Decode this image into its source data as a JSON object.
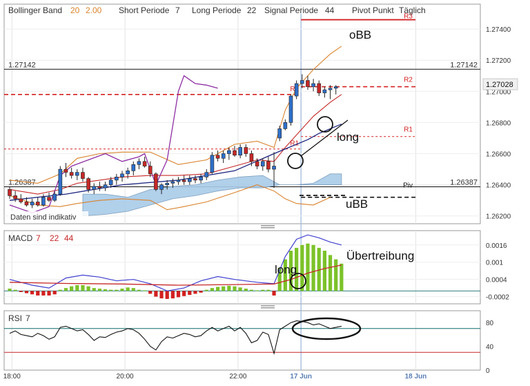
{
  "header": {
    "bb_label": "Bollinger Band",
    "bb_period": "20",
    "bb_dev": "2.00",
    "short_label": "Short Periode",
    "short_value": "7",
    "long_label": "Long Periode",
    "long_value": "22",
    "signal_label": "Signal Periode",
    "signal_value": "44",
    "pivot_label": "Pivot Punkt",
    "pivot_mode": "Täglich"
  },
  "notice": "Daten sind indikativ",
  "colors": {
    "up_candle": "#2f6fc9",
    "down_candle": "#c62828",
    "bb_outer": "#d9822b",
    "bb_inner": "#c62828",
    "short_ma": "#8e2ea3",
    "kumo": "#a9cbe8",
    "macd_line": "#3f3fd0",
    "signal_line": "#c62828",
    "hist_pos": "#7cc22a",
    "hist_neg": "#d32020",
    "rsi_line": "#111111",
    "rsi_level": "#0e6b6b"
  },
  "price_panel": {
    "y_ticks": [
      "1.27400",
      "1.27200",
      "1.27000",
      "1.26800",
      "1.26600",
      "1.26400",
      "1.26200"
    ],
    "level_high": "1.27142",
    "level_low": "1.26387",
    "last_price": "1.27028",
    "pivot_labels": {
      "r2": "R2",
      "r1": "R1",
      "piv": "Piv",
      "r3": "R3"
    },
    "annotations": {
      "obb": "oBB",
      "ubb": "uBB",
      "long": "long"
    }
  },
  "macd_panel": {
    "label": "MACD",
    "fast": "7",
    "slow": "22",
    "signal": "44",
    "y_ticks": [
      "0.0016",
      "0.001",
      "0.0004",
      "-0.0002"
    ],
    "annotations": {
      "exaggeration": "Übertreibung",
      "long": "long"
    }
  },
  "rsi_panel": {
    "label": "RSI",
    "period": "7",
    "y_ticks": [
      "80",
      "40",
      "0"
    ]
  },
  "x_axis": {
    "ticks": [
      "18:00",
      "20:00",
      "22:00",
      "17 Jun",
      "18 Jun"
    ]
  },
  "chart_data": [
    {
      "type": "candlestick",
      "title": "",
      "ylim": [
        1.2615,
        1.2756
      ],
      "candles": [
        {
          "o": 1.2637,
          "h": 1.2639,
          "l": 1.2631,
          "c": 1.2633
        },
        {
          "o": 1.2633,
          "h": 1.2636,
          "l": 1.2629,
          "c": 1.2631
        },
        {
          "o": 1.2631,
          "h": 1.2634,
          "l": 1.2628,
          "c": 1.2629
        },
        {
          "o": 1.2629,
          "h": 1.2632,
          "l": 1.2626,
          "c": 1.2627
        },
        {
          "o": 1.2627,
          "h": 1.2631,
          "l": 1.2625,
          "c": 1.2629
        },
        {
          "o": 1.2629,
          "h": 1.2632,
          "l": 1.2626,
          "c": 1.2627
        },
        {
          "o": 1.2627,
          "h": 1.2634,
          "l": 1.2626,
          "c": 1.2632
        },
        {
          "o": 1.2632,
          "h": 1.2635,
          "l": 1.2629,
          "c": 1.263
        },
        {
          "o": 1.263,
          "h": 1.2636,
          "l": 1.2629,
          "c": 1.2634
        },
        {
          "o": 1.2634,
          "h": 1.2652,
          "l": 1.2633,
          "c": 1.265
        },
        {
          "o": 1.265,
          "h": 1.2654,
          "l": 1.2645,
          "c": 1.2648
        },
        {
          "o": 1.2648,
          "h": 1.2651,
          "l": 1.2644,
          "c": 1.2646
        },
        {
          "o": 1.2646,
          "h": 1.265,
          "l": 1.2643,
          "c": 1.2648
        },
        {
          "o": 1.2648,
          "h": 1.2651,
          "l": 1.2642,
          "c": 1.2644
        },
        {
          "o": 1.2644,
          "h": 1.2645,
          "l": 1.2635,
          "c": 1.2637
        },
        {
          "o": 1.2637,
          "h": 1.2641,
          "l": 1.2634,
          "c": 1.2639
        },
        {
          "o": 1.2639,
          "h": 1.2642,
          "l": 1.2636,
          "c": 1.2638
        },
        {
          "o": 1.2638,
          "h": 1.2642,
          "l": 1.2636,
          "c": 1.264
        },
        {
          "o": 1.264,
          "h": 1.2645,
          "l": 1.2638,
          "c": 1.2643
        },
        {
          "o": 1.2643,
          "h": 1.2647,
          "l": 1.264,
          "c": 1.2645
        },
        {
          "o": 1.2645,
          "h": 1.2649,
          "l": 1.2642,
          "c": 1.2647
        },
        {
          "o": 1.2647,
          "h": 1.2651,
          "l": 1.2644,
          "c": 1.2649
        },
        {
          "o": 1.2649,
          "h": 1.2655,
          "l": 1.2646,
          "c": 1.2653
        },
        {
          "o": 1.2653,
          "h": 1.2657,
          "l": 1.265,
          "c": 1.2655
        },
        {
          "o": 1.2655,
          "h": 1.2658,
          "l": 1.2651,
          "c": 1.2652
        },
        {
          "o": 1.2652,
          "h": 1.2655,
          "l": 1.2645,
          "c": 1.2647
        },
        {
          "o": 1.2647,
          "h": 1.2648,
          "l": 1.2636,
          "c": 1.2637
        },
        {
          "o": 1.2637,
          "h": 1.2641,
          "l": 1.2634,
          "c": 1.264
        },
        {
          "o": 1.264,
          "h": 1.2643,
          "l": 1.2637,
          "c": 1.2641
        },
        {
          "o": 1.2641,
          "h": 1.2644,
          "l": 1.2638,
          "c": 1.2642
        },
        {
          "o": 1.2642,
          "h": 1.2645,
          "l": 1.264,
          "c": 1.2643
        },
        {
          "o": 1.2643,
          "h": 1.2646,
          "l": 1.264,
          "c": 1.2642
        },
        {
          "o": 1.2642,
          "h": 1.2646,
          "l": 1.264,
          "c": 1.2644
        },
        {
          "o": 1.2644,
          "h": 1.2646,
          "l": 1.2641,
          "c": 1.2643
        },
        {
          "o": 1.2643,
          "h": 1.2647,
          "l": 1.2641,
          "c": 1.2645
        },
        {
          "o": 1.2645,
          "h": 1.265,
          "l": 1.2643,
          "c": 1.2648
        },
        {
          "o": 1.2648,
          "h": 1.2661,
          "l": 1.2647,
          "c": 1.2659
        },
        {
          "o": 1.2659,
          "h": 1.2662,
          "l": 1.2655,
          "c": 1.2657
        },
        {
          "o": 1.2657,
          "h": 1.2662,
          "l": 1.2654,
          "c": 1.266
        },
        {
          "o": 1.266,
          "h": 1.2664,
          "l": 1.2656,
          "c": 1.2662
        },
        {
          "o": 1.2662,
          "h": 1.2665,
          "l": 1.2658,
          "c": 1.2659
        },
        {
          "o": 1.2659,
          "h": 1.2666,
          "l": 1.2657,
          "c": 1.2664
        },
        {
          "o": 1.2664,
          "h": 1.2666,
          "l": 1.2658,
          "c": 1.266
        },
        {
          "o": 1.266,
          "h": 1.2662,
          "l": 1.2652,
          "c": 1.2655
        },
        {
          "o": 1.2655,
          "h": 1.2657,
          "l": 1.265,
          "c": 1.2652
        },
        {
          "o": 1.2652,
          "h": 1.2657,
          "l": 1.2649,
          "c": 1.2655
        },
        {
          "o": 1.2655,
          "h": 1.2658,
          "l": 1.2648,
          "c": 1.265
        },
        {
          "o": 1.265,
          "h": 1.2661,
          "l": 1.2638,
          "c": 1.2652
        },
        {
          "o": 1.267,
          "h": 1.2678,
          "l": 1.2668,
          "c": 1.2676
        },
        {
          "o": 1.2676,
          "h": 1.2682,
          "l": 1.2675,
          "c": 1.268
        },
        {
          "o": 1.268,
          "h": 1.2698,
          "l": 1.2678,
          "c": 1.2697
        },
        {
          "o": 1.2697,
          "h": 1.2707,
          "l": 1.2695,
          "c": 1.2705
        },
        {
          "o": 1.2705,
          "h": 1.2711,
          "l": 1.2702,
          "c": 1.2707
        },
        {
          "o": 1.2707,
          "h": 1.271,
          "l": 1.2701,
          "c": 1.2703
        },
        {
          "o": 1.2703,
          "h": 1.2708,
          "l": 1.27,
          "c": 1.2705
        },
        {
          "o": 1.2705,
          "h": 1.2707,
          "l": 1.2697,
          "c": 1.2699
        },
        {
          "o": 1.2699,
          "h": 1.2703,
          "l": 1.2696,
          "c": 1.2701
        },
        {
          "o": 1.2701,
          "h": 1.2704,
          "l": 1.2695,
          "c": 1.2702
        },
        {
          "o": 1.2702,
          "h": 1.2704,
          "l": 1.2698,
          "c": 1.2703
        }
      ],
      "bb_upper": [
        {
          "i": 0,
          "y": 1.2643
        },
        {
          "i": 5,
          "y": 1.2641
        },
        {
          "i": 9,
          "y": 1.2647
        },
        {
          "i": 12,
          "y": 1.2657
        },
        {
          "i": 16,
          "y": 1.266
        },
        {
          "i": 20,
          "y": 1.2661
        },
        {
          "i": 25,
          "y": 1.2661
        },
        {
          "i": 30,
          "y": 1.2653
        },
        {
          "i": 35,
          "y": 1.2656
        },
        {
          "i": 40,
          "y": 1.2666
        },
        {
          "i": 44,
          "y": 1.2668
        },
        {
          "i": 47,
          "y": 1.2664
        },
        {
          "i": 49,
          "y": 1.2688
        },
        {
          "i": 51,
          "y": 1.2702
        },
        {
          "i": 54,
          "y": 1.2714
        },
        {
          "i": 57,
          "y": 1.2724
        },
        {
          "i": 59,
          "y": 1.2729
        }
      ],
      "bb_middle": [
        {
          "i": 0,
          "y": 1.2637
        },
        {
          "i": 5,
          "y": 1.2634
        },
        {
          "i": 9,
          "y": 1.2637
        },
        {
          "i": 12,
          "y": 1.2641
        },
        {
          "i": 16,
          "y": 1.2643
        },
        {
          "i": 20,
          "y": 1.2645
        },
        {
          "i": 25,
          "y": 1.2646
        },
        {
          "i": 30,
          "y": 1.2646
        },
        {
          "i": 35,
          "y": 1.2647
        },
        {
          "i": 40,
          "y": 1.2652
        },
        {
          "i": 44,
          "y": 1.2656
        },
        {
          "i": 47,
          "y": 1.2655
        },
        {
          "i": 49,
          "y": 1.2664
        },
        {
          "i": 51,
          "y": 1.2672
        },
        {
          "i": 54,
          "y": 1.2684
        },
        {
          "i": 57,
          "y": 1.2693
        },
        {
          "i": 59,
          "y": 1.2698
        }
      ],
      "bb_lower": [
        {
          "i": 0,
          "y": 1.2633
        },
        {
          "i": 5,
          "y": 1.2627
        },
        {
          "i": 9,
          "y": 1.2626
        },
        {
          "i": 12,
          "y": 1.2628
        },
        {
          "i": 16,
          "y": 1.263
        },
        {
          "i": 20,
          "y": 1.2631
        },
        {
          "i": 25,
          "y": 1.263
        },
        {
          "i": 28,
          "y": 1.2624
        },
        {
          "i": 31,
          "y": 1.2626
        },
        {
          "i": 35,
          "y": 1.2629
        },
        {
          "i": 40,
          "y": 1.2635
        },
        {
          "i": 44,
          "y": 1.264
        },
        {
          "i": 47,
          "y": 1.2636
        },
        {
          "i": 49,
          "y": 1.2631
        },
        {
          "i": 51,
          "y": 1.2628
        },
        {
          "i": 54,
          "y": 1.2627
        },
        {
          "i": 57,
          "y": 1.2632
        }
      ],
      "short_ma": [
        {
          "i": 0,
          "y": 1.2627
        },
        {
          "i": 4,
          "y": 1.2622
        },
        {
          "i": 7,
          "y": 1.2626
        },
        {
          "i": 9,
          "y": 1.2646
        },
        {
          "i": 11,
          "y": 1.2652
        },
        {
          "i": 14,
          "y": 1.2656
        },
        {
          "i": 17,
          "y": 1.266
        },
        {
          "i": 20,
          "y": 1.2655
        },
        {
          "i": 23,
          "y": 1.2658
        },
        {
          "i": 24,
          "y": 1.266
        },
        {
          "i": 26,
          "y": 1.264
        },
        {
          "i": 28,
          "y": 1.2656
        },
        {
          "i": 30,
          "y": 1.27
        },
        {
          "i": 31,
          "y": 1.271
        },
        {
          "i": 33,
          "y": 1.2705
        },
        {
          "i": 35,
          "y": 1.2704
        },
        {
          "i": 37,
          "y": 1.2702
        }
      ],
      "long_ma": [
        {
          "i": 0,
          "y": 1.263
        },
        {
          "i": 10,
          "y": 1.2634
        },
        {
          "i": 20,
          "y": 1.264
        },
        {
          "i": 30,
          "y": 1.2643
        },
        {
          "i": 40,
          "y": 1.2649
        },
        {
          "i": 47,
          "y": 1.266
        },
        {
          "i": 53,
          "y": 1.2669
        },
        {
          "i": 55,
          "y": 1.2673
        },
        {
          "i": 59,
          "y": 1.2679
        }
      ],
      "kumo_top": [
        {
          "i": 13,
          "y": 1.2634
        },
        {
          "i": 17,
          "y": 1.2634
        },
        {
          "i": 21,
          "y": 1.2632
        },
        {
          "i": 25,
          "y": 1.2637
        },
        {
          "i": 29,
          "y": 1.2639
        },
        {
          "i": 33,
          "y": 1.264
        },
        {
          "i": 37,
          "y": 1.2643
        },
        {
          "i": 41,
          "y": 1.2645
        },
        {
          "i": 45,
          "y": 1.2646
        },
        {
          "i": 48,
          "y": 1.264
        },
        {
          "i": 51,
          "y": 1.264
        },
        {
          "i": 54,
          "y": 1.2641
        },
        {
          "i": 57,
          "y": 1.2647
        },
        {
          "i": 59,
          "y": 1.2647
        }
      ],
      "kumo_bottom": [
        {
          "i": 13,
          "y": 1.262
        },
        {
          "i": 17,
          "y": 1.2621
        },
        {
          "i": 21,
          "y": 1.2623
        },
        {
          "i": 25,
          "y": 1.2627
        },
        {
          "i": 29,
          "y": 1.2631
        },
        {
          "i": 33,
          "y": 1.2633
        },
        {
          "i": 37,
          "y": 1.2636
        },
        {
          "i": 41,
          "y": 1.2638
        },
        {
          "i": 45,
          "y": 1.2638
        },
        {
          "i": 48,
          "y": 1.264
        },
        {
          "i": 51,
          "y": 1.264
        },
        {
          "i": 54,
          "y": 1.264
        },
        {
          "i": 57,
          "y": 1.264
        },
        {
          "i": 59,
          "y": 1.264
        }
      ],
      "pivot_levels": {
        "r2": 1.2703,
        "r1": 1.2671,
        "piv": 1.2632,
        "r3": 1.2746
      },
      "pivot_prev": {
        "r2": 1.2698,
        "r1": 1.2663
      },
      "levels": {
        "high": 1.27142,
        "low": 1.26387
      }
    },
    {
      "type": "macd",
      "ylim": [
        -0.00045,
        0.0021
      ],
      "macd": [
        {
          "i": 0,
          "y": 0.0004
        },
        {
          "i": 4,
          "y": 0.0002
        },
        {
          "i": 7,
          "y": 0.0001
        },
        {
          "i": 10,
          "y": 0.00045
        },
        {
          "i": 13,
          "y": 0.00055
        },
        {
          "i": 16,
          "y": 0.00048
        },
        {
          "i": 19,
          "y": 0.00035
        },
        {
          "i": 22,
          "y": 0.0004
        },
        {
          "i": 25,
          "y": 0.00025
        },
        {
          "i": 28,
          "y": 0.0
        },
        {
          "i": 31,
          "y": 0.0001
        },
        {
          "i": 34,
          "y": 0.00035
        },
        {
          "i": 37,
          "y": 0.0005
        },
        {
          "i": 40,
          "y": 0.0004
        },
        {
          "i": 44,
          "y": 0.0003
        },
        {
          "i": 47,
          "y": 0.00025
        },
        {
          "i": 49,
          "y": 0.0012
        },
        {
          "i": 51,
          "y": 0.0018
        },
        {
          "i": 53,
          "y": 0.00195
        },
        {
          "i": 55,
          "y": 0.00185
        },
        {
          "i": 57,
          "y": 0.0017
        },
        {
          "i": 59,
          "y": 0.0016
        }
      ],
      "signal": [
        {
          "i": 0,
          "y": 0.0003
        },
        {
          "i": 10,
          "y": 0.00026
        },
        {
          "i": 20,
          "y": 0.00024
        },
        {
          "i": 30,
          "y": 0.0002
        },
        {
          "i": 40,
          "y": 0.00022
        },
        {
          "i": 47,
          "y": 0.00024
        },
        {
          "i": 50,
          "y": 0.0004
        },
        {
          "i": 53,
          "y": 0.00062
        },
        {
          "i": 56,
          "y": 0.00078
        },
        {
          "i": 59,
          "y": 0.0009
        }
      ],
      "histogram": [
        8e-05,
        4e-05,
        -4e-05,
        -8e-05,
        -0.00012,
        -0.00016,
        -0.00016,
        -0.00016,
        -0.00012,
        4e-05,
        0.0001,
        0.00016,
        0.0002,
        0.0002,
        0.00016,
        0.0001,
        8e-05,
        6e-05,
        4e-05,
        4e-05,
        8e-05,
        0.00012,
        0.0001,
        4e-05,
        2e-05,
        -0.0001,
        -0.0002,
        -0.00026,
        -0.00028,
        -0.00026,
        -0.00022,
        -0.00018,
        -0.00014,
        -0.0001,
        -6e-05,
        4e-05,
        0.0001,
        0.00014,
        0.00016,
        0.00018,
        0.00016,
        0.00012,
        8e-05,
        4e-05,
        2e-05,
        4e-05,
        4e-05,
        -0.00016,
        0.0008,
        0.0011,
        0.0014,
        0.0015,
        0.0016,
        0.00165,
        0.0016,
        0.0015,
        0.0014,
        0.00125,
        0.0011,
        0.00095
      ]
    },
    {
      "type": "line",
      "name_label": "RSI",
      "ylim": [
        0,
        100
      ],
      "levels": [
        70,
        30
      ],
      "values": [
        62,
        66,
        60,
        58,
        56,
        62,
        58,
        52,
        56,
        72,
        74,
        70,
        66,
        68,
        60,
        50,
        56,
        55,
        60,
        64,
        66,
        70,
        68,
        62,
        52,
        40,
        34,
        48,
        56,
        54,
        58,
        62,
        60,
        56,
        58,
        66,
        72,
        66,
        70,
        74,
        66,
        72,
        62,
        46,
        50,
        64,
        60,
        28,
        68,
        74,
        80,
        83,
        82,
        80,
        76,
        78,
        74,
        70,
        72,
        74
      ]
    }
  ]
}
